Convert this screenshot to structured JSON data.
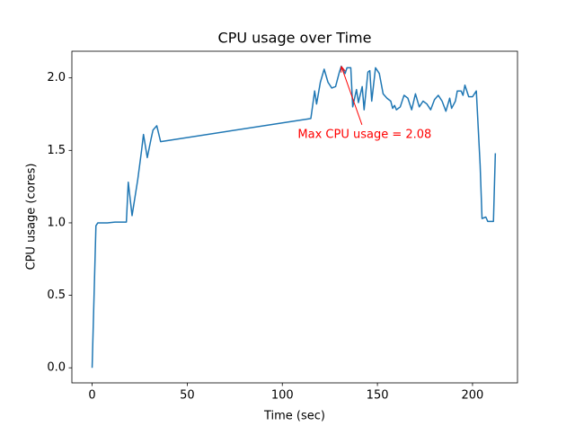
{
  "chart_data": {
    "type": "line",
    "title": "CPU usage over Time",
    "x_label": "Time (sec)",
    "y_label": "CPU usage (cores)",
    "x": [
      0,
      2,
      3,
      5,
      8,
      12,
      18,
      19,
      21,
      24,
      26,
      27,
      29,
      31,
      32,
      34,
      36,
      115,
      117,
      118,
      120,
      122,
      124,
      126,
      128,
      130,
      131,
      133,
      134,
      136,
      137,
      139,
      140,
      142,
      143,
      145,
      146,
      147,
      149,
      151,
      153,
      155,
      157,
      158,
      159,
      160,
      162,
      164,
      166,
      168,
      170,
      172,
      174,
      176,
      178,
      180,
      182,
      184,
      186,
      188,
      189,
      191,
      192,
      194,
      195,
      196,
      198,
      200,
      202,
      204,
      205,
      207,
      208,
      210,
      211,
      212
    ],
    "values": [
      0,
      0.98,
      1.0,
      1.0,
      1.0,
      1.005,
      1.005,
      1.28,
      1.05,
      1.3,
      1.5,
      1.61,
      1.45,
      1.58,
      1.64,
      1.67,
      1.56,
      1.72,
      1.91,
      1.82,
      1.97,
      2.06,
      1.97,
      1.93,
      1.94,
      2.04,
      2.08,
      2.03,
      2.07,
      2.07,
      1.8,
      1.92,
      1.83,
      1.94,
      1.78,
      2.04,
      2.05,
      1.84,
      2.07,
      2.03,
      1.89,
      1.86,
      1.84,
      1.79,
      1.81,
      1.78,
      1.8,
      1.88,
      1.86,
      1.78,
      1.89,
      1.8,
      1.84,
      1.82,
      1.78,
      1.85,
      1.88,
      1.84,
      1.77,
      1.86,
      1.79,
      1.84,
      1.91,
      1.91,
      1.88,
      1.95,
      1.87,
      1.87,
      1.91,
      1.4,
      1.03,
      1.04,
      1.01,
      1.01,
      1.01,
      1.48
    ],
    "color": "#1f77b4",
    "xlim": [
      -10.65,
      223.65
    ],
    "xticks": [
      0,
      50,
      100,
      150,
      200
    ],
    "ylim": [
      -0.104,
      2.184
    ],
    "yticks": [
      {
        "value": 0,
        "label": "0.0"
      },
      {
        "value": 0.5,
        "label": "0.5"
      },
      {
        "value": 1,
        "label": "1.0"
      },
      {
        "value": 1.5,
        "label": "1.5"
      },
      {
        "value": 2,
        "label": "2.0"
      }
    ],
    "annotation": {
      "text": "Max CPU usage = 2.08",
      "x": 131,
      "y": 2.08,
      "color": "red"
    }
  }
}
